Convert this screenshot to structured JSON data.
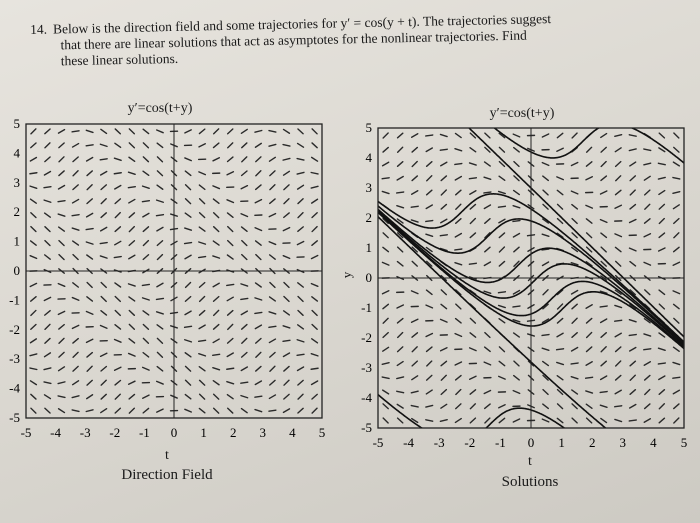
{
  "problem": {
    "number": "14.",
    "line1": "Below is the direction field and some trajectories for y′ = cos(y + t). The trajectories suggest",
    "line2": "that there are linear solutions that act as asymptotes for the nonlinear trajectories. Find",
    "line3": "these linear solutions."
  },
  "chart_data": [
    {
      "type": "direction-field",
      "title": "y′=cos(t+y)",
      "xlabel": "t",
      "caption": "Direction Field",
      "xlim": [
        -5,
        5
      ],
      "ylim": [
        -5,
        5
      ],
      "xticks": [
        "-5",
        "-4",
        "-3",
        "-2",
        "-1",
        "0",
        "1",
        "2",
        "3",
        "4",
        "5"
      ],
      "yticks": [
        "5",
        "4",
        "3",
        "2",
        "1",
        "0",
        "-1",
        "-2",
        "-3",
        "-4",
        "-5"
      ],
      "grid": false
    },
    {
      "type": "direction-field-with-trajectories",
      "title": "y′=cos(t+y)",
      "xlabel": "t",
      "ylabel": "y",
      "caption": "Solutions",
      "xlim": [
        -5,
        5
      ],
      "ylim": [
        -5,
        5
      ],
      "xticks": [
        "-5",
        "-4",
        "-3",
        "-2",
        "-1",
        "0",
        "1",
        "2",
        "3",
        "4",
        "5"
      ],
      "yticks": [
        "5",
        "4",
        "3",
        "2",
        "1",
        "0",
        "-1",
        "-2",
        "-3",
        "-4",
        "-5"
      ],
      "grid": false
    }
  ]
}
